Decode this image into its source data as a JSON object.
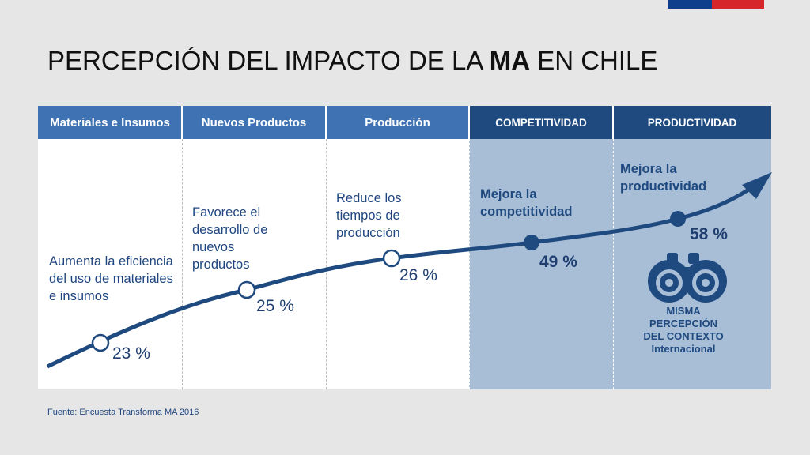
{
  "title": {
    "prefix": "PERCEPCIÓN DEL IMPACTO DE LA ",
    "bold": "MA",
    "suffix": " EN CHILE"
  },
  "columns": [
    {
      "header": "Materiales e Insumos",
      "text": "Aumenta la eficiencia del uso de materiales e insumos",
      "value": "23 %"
    },
    {
      "header": "Nuevos Productos",
      "text": "Favorece el desarrollo de nuevos productos",
      "value": "25 %"
    },
    {
      "header": "Producción",
      "text": "Reduce los tiempos de producción",
      "value": "26 %"
    },
    {
      "header": "COMPETITIVIDAD",
      "text": "Mejora la competitividad",
      "value": "49 %"
    },
    {
      "header": "PRODUCTIVIDAD",
      "text": "Mejora la productividad",
      "value": "58 %"
    }
  ],
  "binoculars": {
    "icon": "binoculars-icon",
    "lines": [
      "MISMA",
      "PERCEPCIÓN",
      "DEL CONTEXTO",
      "Internacional"
    ]
  },
  "source": "Fuente: Encuesta Transforma MA 2016",
  "colors": {
    "header_light": "#3f72b3",
    "header_dark": "#1f4a80",
    "highlight_bg": "#a8bdd6",
    "curve": "#1f4a80",
    "flag_blue": "#0f3e8c",
    "flag_red": "#d6262c"
  }
}
